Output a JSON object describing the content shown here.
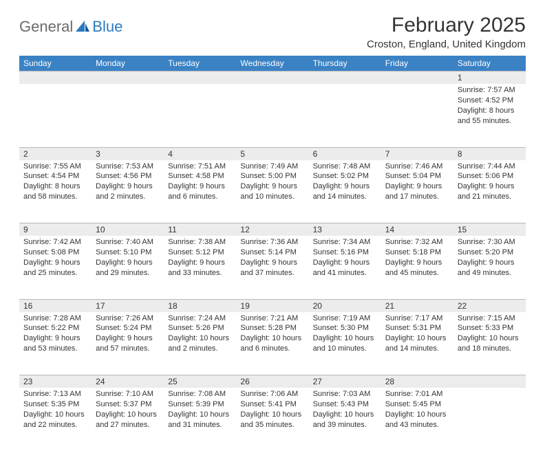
{
  "logo": {
    "text1": "General",
    "text2": "Blue"
  },
  "title": "February 2025",
  "location": "Croston, England, United Kingdom",
  "colors": {
    "header_bg": "#3a82c4",
    "header_text": "#ffffff",
    "daynum_bg": "#ececec",
    "border": "#b8b8b8",
    "text": "#333333",
    "logo_gray": "#6a6a6a",
    "logo_blue": "#2a7ac0"
  },
  "weekdays": [
    "Sunday",
    "Monday",
    "Tuesday",
    "Wednesday",
    "Thursday",
    "Friday",
    "Saturday"
  ],
  "weeks": [
    [
      {
        "num": "",
        "sunrise": "",
        "sunset": "",
        "daylight": ""
      },
      {
        "num": "",
        "sunrise": "",
        "sunset": "",
        "daylight": ""
      },
      {
        "num": "",
        "sunrise": "",
        "sunset": "",
        "daylight": ""
      },
      {
        "num": "",
        "sunrise": "",
        "sunset": "",
        "daylight": ""
      },
      {
        "num": "",
        "sunrise": "",
        "sunset": "",
        "daylight": ""
      },
      {
        "num": "",
        "sunrise": "",
        "sunset": "",
        "daylight": ""
      },
      {
        "num": "1",
        "sunrise": "Sunrise: 7:57 AM",
        "sunset": "Sunset: 4:52 PM",
        "daylight": "Daylight: 8 hours and 55 minutes."
      }
    ],
    [
      {
        "num": "2",
        "sunrise": "Sunrise: 7:55 AM",
        "sunset": "Sunset: 4:54 PM",
        "daylight": "Daylight: 8 hours and 58 minutes."
      },
      {
        "num": "3",
        "sunrise": "Sunrise: 7:53 AM",
        "sunset": "Sunset: 4:56 PM",
        "daylight": "Daylight: 9 hours and 2 minutes."
      },
      {
        "num": "4",
        "sunrise": "Sunrise: 7:51 AM",
        "sunset": "Sunset: 4:58 PM",
        "daylight": "Daylight: 9 hours and 6 minutes."
      },
      {
        "num": "5",
        "sunrise": "Sunrise: 7:49 AM",
        "sunset": "Sunset: 5:00 PM",
        "daylight": "Daylight: 9 hours and 10 minutes."
      },
      {
        "num": "6",
        "sunrise": "Sunrise: 7:48 AM",
        "sunset": "Sunset: 5:02 PM",
        "daylight": "Daylight: 9 hours and 14 minutes."
      },
      {
        "num": "7",
        "sunrise": "Sunrise: 7:46 AM",
        "sunset": "Sunset: 5:04 PM",
        "daylight": "Daylight: 9 hours and 17 minutes."
      },
      {
        "num": "8",
        "sunrise": "Sunrise: 7:44 AM",
        "sunset": "Sunset: 5:06 PM",
        "daylight": "Daylight: 9 hours and 21 minutes."
      }
    ],
    [
      {
        "num": "9",
        "sunrise": "Sunrise: 7:42 AM",
        "sunset": "Sunset: 5:08 PM",
        "daylight": "Daylight: 9 hours and 25 minutes."
      },
      {
        "num": "10",
        "sunrise": "Sunrise: 7:40 AM",
        "sunset": "Sunset: 5:10 PM",
        "daylight": "Daylight: 9 hours and 29 minutes."
      },
      {
        "num": "11",
        "sunrise": "Sunrise: 7:38 AM",
        "sunset": "Sunset: 5:12 PM",
        "daylight": "Daylight: 9 hours and 33 minutes."
      },
      {
        "num": "12",
        "sunrise": "Sunrise: 7:36 AM",
        "sunset": "Sunset: 5:14 PM",
        "daylight": "Daylight: 9 hours and 37 minutes."
      },
      {
        "num": "13",
        "sunrise": "Sunrise: 7:34 AM",
        "sunset": "Sunset: 5:16 PM",
        "daylight": "Daylight: 9 hours and 41 minutes."
      },
      {
        "num": "14",
        "sunrise": "Sunrise: 7:32 AM",
        "sunset": "Sunset: 5:18 PM",
        "daylight": "Daylight: 9 hours and 45 minutes."
      },
      {
        "num": "15",
        "sunrise": "Sunrise: 7:30 AM",
        "sunset": "Sunset: 5:20 PM",
        "daylight": "Daylight: 9 hours and 49 minutes."
      }
    ],
    [
      {
        "num": "16",
        "sunrise": "Sunrise: 7:28 AM",
        "sunset": "Sunset: 5:22 PM",
        "daylight": "Daylight: 9 hours and 53 minutes."
      },
      {
        "num": "17",
        "sunrise": "Sunrise: 7:26 AM",
        "sunset": "Sunset: 5:24 PM",
        "daylight": "Daylight: 9 hours and 57 minutes."
      },
      {
        "num": "18",
        "sunrise": "Sunrise: 7:24 AM",
        "sunset": "Sunset: 5:26 PM",
        "daylight": "Daylight: 10 hours and 2 minutes."
      },
      {
        "num": "19",
        "sunrise": "Sunrise: 7:21 AM",
        "sunset": "Sunset: 5:28 PM",
        "daylight": "Daylight: 10 hours and 6 minutes."
      },
      {
        "num": "20",
        "sunrise": "Sunrise: 7:19 AM",
        "sunset": "Sunset: 5:30 PM",
        "daylight": "Daylight: 10 hours and 10 minutes."
      },
      {
        "num": "21",
        "sunrise": "Sunrise: 7:17 AM",
        "sunset": "Sunset: 5:31 PM",
        "daylight": "Daylight: 10 hours and 14 minutes."
      },
      {
        "num": "22",
        "sunrise": "Sunrise: 7:15 AM",
        "sunset": "Sunset: 5:33 PM",
        "daylight": "Daylight: 10 hours and 18 minutes."
      }
    ],
    [
      {
        "num": "23",
        "sunrise": "Sunrise: 7:13 AM",
        "sunset": "Sunset: 5:35 PM",
        "daylight": "Daylight: 10 hours and 22 minutes."
      },
      {
        "num": "24",
        "sunrise": "Sunrise: 7:10 AM",
        "sunset": "Sunset: 5:37 PM",
        "daylight": "Daylight: 10 hours and 27 minutes."
      },
      {
        "num": "25",
        "sunrise": "Sunrise: 7:08 AM",
        "sunset": "Sunset: 5:39 PM",
        "daylight": "Daylight: 10 hours and 31 minutes."
      },
      {
        "num": "26",
        "sunrise": "Sunrise: 7:06 AM",
        "sunset": "Sunset: 5:41 PM",
        "daylight": "Daylight: 10 hours and 35 minutes."
      },
      {
        "num": "27",
        "sunrise": "Sunrise: 7:03 AM",
        "sunset": "Sunset: 5:43 PM",
        "daylight": "Daylight: 10 hours and 39 minutes."
      },
      {
        "num": "28",
        "sunrise": "Sunrise: 7:01 AM",
        "sunset": "Sunset: 5:45 PM",
        "daylight": "Daylight: 10 hours and 43 minutes."
      },
      {
        "num": "",
        "sunrise": "",
        "sunset": "",
        "daylight": ""
      }
    ]
  ]
}
